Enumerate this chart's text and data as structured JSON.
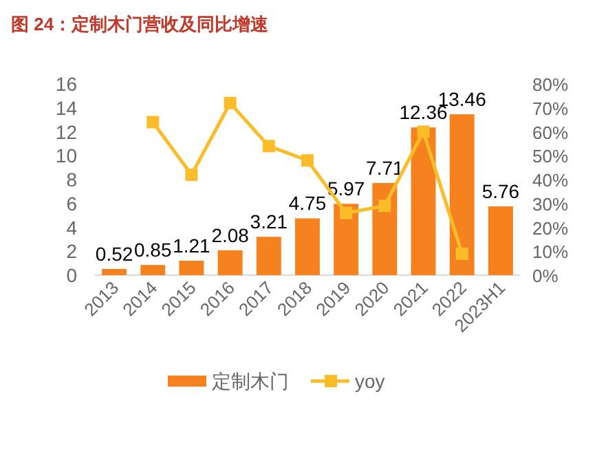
{
  "chart_data": {
    "type": "bar",
    "title": "图 24：定制木门营收及同比增速",
    "categories": [
      "2013",
      "2014",
      "2015",
      "2016",
      "2017",
      "2018",
      "2019",
      "2020",
      "2021",
      "2022",
      "2023H1"
    ],
    "series": [
      {
        "name": "定制木门",
        "color": "#f5821f",
        "values": [
          0.52,
          0.85,
          1.21,
          2.08,
          3.21,
          4.75,
          5.97,
          7.71,
          12.36,
          13.46,
          5.76
        ],
        "value_labels": [
          "0.52",
          "0.85",
          "1.21",
          "2.08",
          "3.21",
          "4.75",
          "5.97",
          "7.71",
          "12.36",
          "13.46",
          "5.76"
        ]
      },
      {
        "name": "yoy",
        "type": "line",
        "axis": "y2",
        "color": "#fbbc2a",
        "marker": "square",
        "values": [
          null,
          64,
          42,
          72,
          54,
          48,
          26,
          29,
          60,
          9,
          null
        ]
      }
    ],
    "ylim": [
      0,
      16
    ],
    "yticks": [
      0,
      2,
      4,
      6,
      8,
      10,
      12,
      14,
      16
    ],
    "y2lim": [
      0,
      80
    ],
    "y2ticks": [
      {
        "value": 0,
        "label": "0%"
      },
      {
        "value": 10,
        "label": "10%"
      },
      {
        "value": 20,
        "label": "20%"
      },
      {
        "value": 30,
        "label": "30%"
      },
      {
        "value": 40,
        "label": "40%"
      },
      {
        "value": 50,
        "label": "50%"
      },
      {
        "value": 60,
        "label": "60%"
      },
      {
        "value": 70,
        "label": "70%"
      },
      {
        "value": 80,
        "label": "80%"
      }
    ],
    "legend": "bottom",
    "grid": false
  }
}
